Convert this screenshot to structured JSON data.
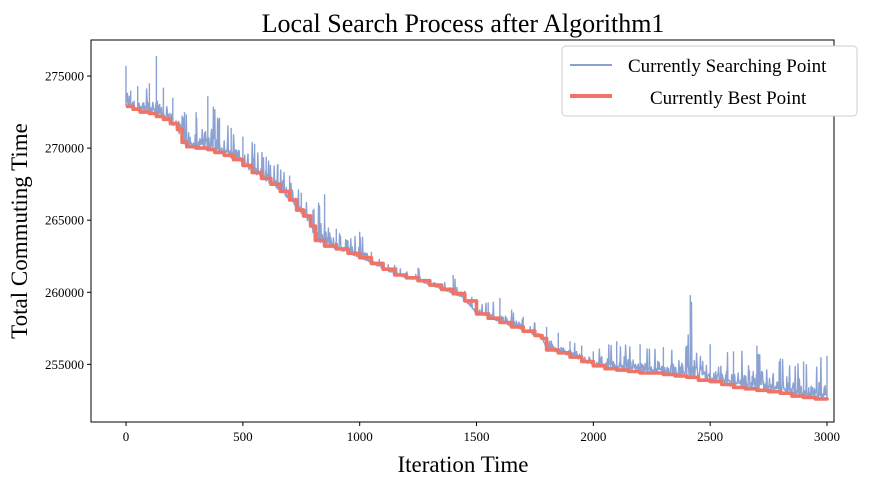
{
  "chart_data": {
    "type": "line",
    "title": "Local Search Process after Algorithm1",
    "xlabel": "Iteration Time",
    "ylabel": "Total Commuting Time",
    "xlim": [
      -150,
      3030
    ],
    "ylim": [
      251000,
      277500
    ],
    "xticks": [
      0,
      500,
      1000,
      1500,
      2000,
      2500,
      3000
    ],
    "yticks": [
      255000,
      260000,
      265000,
      270000,
      275000
    ],
    "xtick_labels": [
      "0",
      "500",
      "1000",
      "1500",
      "2000",
      "2500",
      "3000"
    ],
    "ytick_labels": [
      "255000",
      "260000",
      "265000",
      "270000",
      "275000"
    ],
    "grid": false,
    "legend_position": "top-right",
    "colors": {
      "searching": "#8aa1d2",
      "best": "#ee7468"
    },
    "series": [
      {
        "name": "Currently Searching Point",
        "style": "thin-line",
        "noise": "spiky values above best point, spike height decreasing with iteration",
        "x": [
          0,
          20,
          50,
          100,
          130,
          160,
          200,
          250,
          300,
          350,
          400,
          450,
          500,
          550,
          600,
          650,
          700,
          750,
          800,
          850,
          900,
          950,
          1000,
          1050,
          1100,
          1150,
          1200,
          1250,
          1300,
          1350,
          1400,
          1450,
          1500,
          1550,
          1600,
          1650,
          1700,
          1750,
          1800,
          1850,
          1900,
          1950,
          2000,
          2100,
          2200,
          2300,
          2400,
          2415,
          2500,
          2600,
          2700,
          2800,
          2900,
          3000
        ],
        "values": [
          275700,
          274000,
          274300,
          274500,
          276400,
          274200,
          273500,
          272500,
          272500,
          273600,
          272100,
          271400,
          270800,
          270300,
          269400,
          268900,
          268100,
          266900,
          265700,
          266800,
          264400,
          263600,
          264200,
          262800,
          262100,
          261900,
          261400,
          261700,
          260700,
          260600,
          261200,
          260100,
          259400,
          259300,
          259600,
          258800,
          258300,
          257900,
          257600,
          257200,
          256600,
          256300,
          255900,
          256600,
          256400,
          256200,
          256300,
          259800,
          256400,
          255900,
          256300,
          255400,
          255200,
          255600
        ]
      },
      {
        "name": "Currently Best Point",
        "style": "thick-step-line",
        "x": [
          0,
          30,
          60,
          100,
          130,
          160,
          190,
          220,
          240,
          260,
          300,
          350,
          380,
          420,
          460,
          500,
          540,
          580,
          620,
          660,
          700,
          730,
          760,
          790,
          810,
          850,
          900,
          950,
          1000,
          1050,
          1100,
          1150,
          1200,
          1250,
          1300,
          1350,
          1400,
          1450,
          1500,
          1550,
          1600,
          1650,
          1700,
          1750,
          1780,
          1800,
          1850,
          1900,
          1950,
          2000,
          2050,
          2100,
          2150,
          2200,
          2250,
          2300,
          2350,
          2400,
          2450,
          2500,
          2550,
          2600,
          2650,
          2700,
          2750,
          2800,
          2850,
          2900,
          2950,
          3000
        ],
        "values": [
          272900,
          272700,
          272500,
          272400,
          272200,
          272000,
          271700,
          271300,
          270400,
          270100,
          270000,
          269900,
          269700,
          269500,
          269200,
          268800,
          268300,
          267900,
          267500,
          267000,
          266400,
          265700,
          265300,
          264600,
          263600,
          263200,
          263000,
          262700,
          262400,
          262000,
          261600,
          261200,
          261000,
          260800,
          260500,
          260200,
          259900,
          259400,
          258500,
          258200,
          257900,
          257600,
          257300,
          257000,
          256800,
          256000,
          255800,
          255500,
          255200,
          254900,
          254700,
          254600,
          254500,
          254400,
          254400,
          254300,
          254200,
          254100,
          253900,
          253800,
          253600,
          253400,
          253300,
          253200,
          253100,
          253000,
          252800,
          252700,
          252600,
          252500
        ]
      }
    ]
  }
}
